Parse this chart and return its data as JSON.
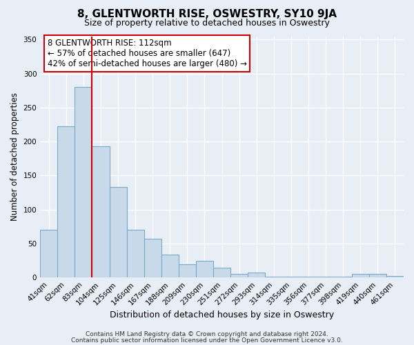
{
  "title": "8, GLENTWORTH RISE, OSWESTRY, SY10 9JA",
  "subtitle": "Size of property relative to detached houses in Oswestry",
  "xlabel": "Distribution of detached houses by size in Oswestry",
  "ylabel": "Number of detached properties",
  "footer_line1": "Contains HM Land Registry data © Crown copyright and database right 2024.",
  "footer_line2": "Contains public sector information licensed under the Open Government Licence v3.0.",
  "bar_labels": [
    "41sqm",
    "62sqm",
    "83sqm",
    "104sqm",
    "125sqm",
    "146sqm",
    "167sqm",
    "188sqm",
    "209sqm",
    "230sqm",
    "251sqm",
    "272sqm",
    "293sqm",
    "314sqm",
    "335sqm",
    "356sqm",
    "377sqm",
    "398sqm",
    "419sqm",
    "440sqm",
    "461sqm"
  ],
  "bar_values": [
    70,
    223,
    280,
    193,
    133,
    70,
    57,
    34,
    20,
    25,
    14,
    5,
    7,
    1,
    1,
    1,
    1,
    1,
    5,
    5,
    2
  ],
  "bar_color": "#c8d9ea",
  "bar_edgecolor": "#7aaac8",
  "ylim": [
    0,
    355
  ],
  "yticks": [
    0,
    50,
    100,
    150,
    200,
    250,
    300,
    350
  ],
  "vline_position": 3,
  "vline_color": "#cc0000",
  "annotation_text": "8 GLENTWORTH RISE: 112sqm\n← 57% of detached houses are smaller (647)\n42% of semi-detached houses are larger (480) →",
  "annotation_box_facecolor": "#ffffff",
  "annotation_box_edgecolor": "#cc0000",
  "bg_color": "#e8eef5",
  "grid_color": "#ffffff",
  "title_fontsize": 11,
  "subtitle_fontsize": 9,
  "annotation_fontsize": 8.5,
  "tick_fontsize": 7.5,
  "ylabel_fontsize": 8.5,
  "xlabel_fontsize": 9,
  "footer_fontsize": 6.5
}
